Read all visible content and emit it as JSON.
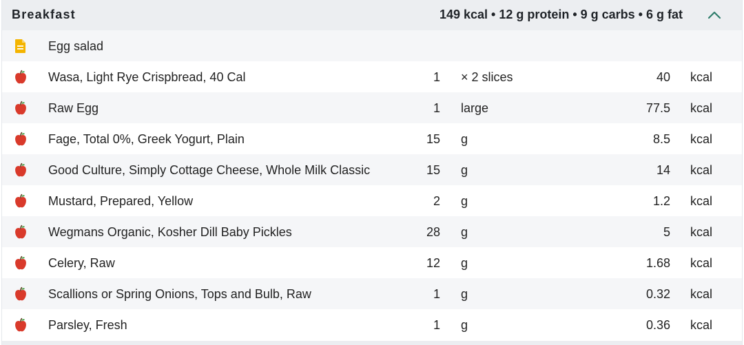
{
  "meal": {
    "title": "Breakfast",
    "summary": "149 kcal • 12 g protein • 9 g carbs • 6 g fat",
    "collapse_icon": "chevron-up-icon",
    "accent_color": "#2e7d6b"
  },
  "recipe": {
    "name": "Egg salad",
    "icon": "document-icon",
    "icon_color": "#f4b400"
  },
  "items": [
    {
      "name": "Wasa, Light Rye Crispbread, 40 Cal",
      "qty": "1",
      "unit": "× 2 slices",
      "cal": "40",
      "cal_unit": "kcal"
    },
    {
      "name": "Raw Egg",
      "qty": "1",
      "unit": "large",
      "cal": "77.5",
      "cal_unit": "kcal"
    },
    {
      "name": "Fage, Total 0%, Greek Yogurt, Plain",
      "qty": "15",
      "unit": "g",
      "cal": "8.5",
      "cal_unit": "kcal"
    },
    {
      "name": "Good Culture, Simply Cottage Cheese, Whole Milk Classic",
      "qty": "15",
      "unit": "g",
      "cal": "14",
      "cal_unit": "kcal"
    },
    {
      "name": "Mustard, Prepared, Yellow",
      "qty": "2",
      "unit": "g",
      "cal": "1.2",
      "cal_unit": "kcal"
    },
    {
      "name": "Wegmans Organic, Kosher Dill Baby Pickles",
      "qty": "28",
      "unit": "g",
      "cal": "5",
      "cal_unit": "kcal"
    },
    {
      "name": "Celery, Raw",
      "qty": "12",
      "unit": "g",
      "cal": "1.68",
      "cal_unit": "kcal"
    },
    {
      "name": "Scallions or Spring Onions, Tops and Bulb, Raw",
      "qty": "1",
      "unit": "g",
      "cal": "0.32",
      "cal_unit": "kcal"
    },
    {
      "name": "Parsley, Fresh",
      "qty": "1",
      "unit": "g",
      "cal": "0.36",
      "cal_unit": "kcal"
    }
  ],
  "item_icon": "apple-icon",
  "item_icon_color": "#d93a2b"
}
